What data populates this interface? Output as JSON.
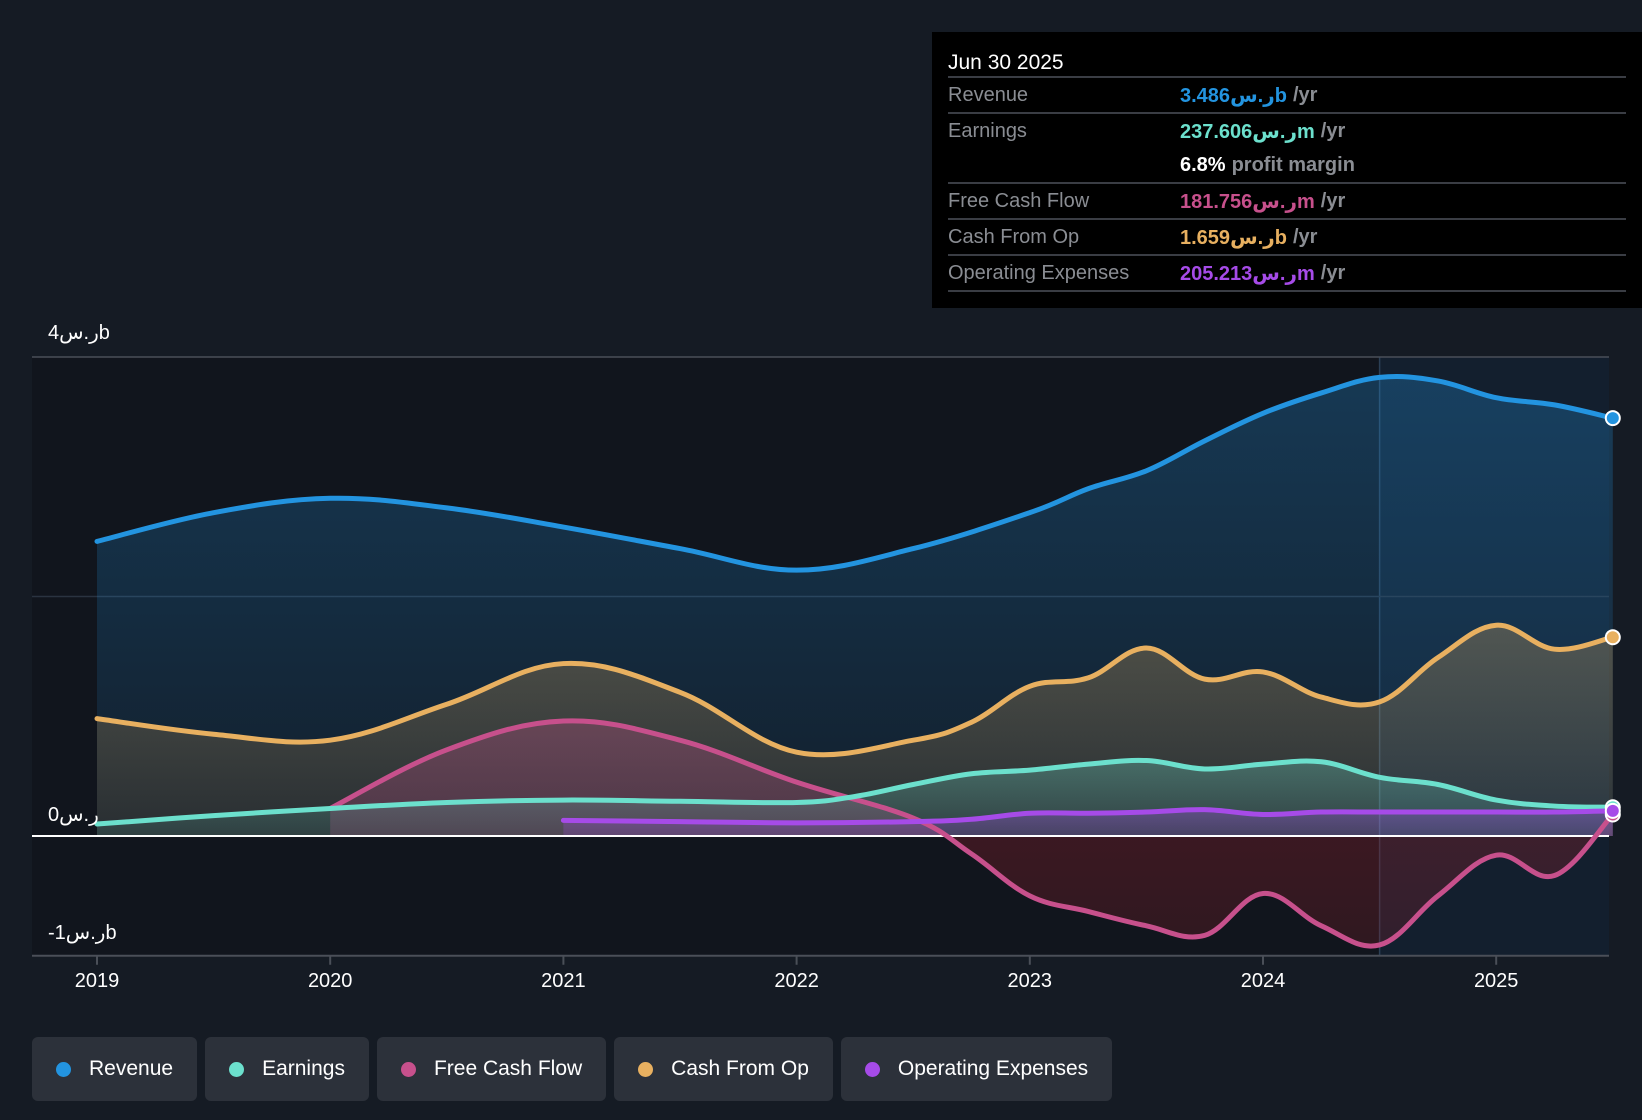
{
  "tooltip": {
    "date": "Jun 30 2025",
    "rows": [
      {
        "label": "Revenue",
        "value": "3.486ر.سb",
        "unit": "/yr",
        "color": "#2394e0"
      },
      {
        "label": "Earnings",
        "value": "237.606ر.سm",
        "unit": "/yr",
        "color": "#6ce0cd"
      },
      {
        "label": "",
        "margin_value": "6.8%",
        "margin_text": "profit margin"
      },
      {
        "label": "Free Cash Flow",
        "value": "181.756ر.سm",
        "unit": "/yr",
        "color": "#c7508c"
      },
      {
        "label": "Cash From Op",
        "value": "1.659ر.سb",
        "unit": "/yr",
        "color": "#e8b060"
      },
      {
        "label": "Operating Expenses",
        "value": "205.213ر.سm",
        "unit": "/yr",
        "color": "#a64be8"
      }
    ]
  },
  "legend": [
    {
      "label": "Revenue",
      "color": "#2394e0"
    },
    {
      "label": "Earnings",
      "color": "#6ce0cd"
    },
    {
      "label": "Free Cash Flow",
      "color": "#c7508c"
    },
    {
      "label": "Cash From Op",
      "color": "#e8b060"
    },
    {
      "label": "Operating Expenses",
      "color": "#a64be8"
    }
  ],
  "chart_data": {
    "type": "area",
    "title": "",
    "xlabel": "",
    "ylabel": "",
    "x_ticks": [
      "2019",
      "2020",
      "2021",
      "2022",
      "2023",
      "2024",
      "2025"
    ],
    "y_ticks": [
      {
        "value": 4,
        "label": "4ر.سb"
      },
      {
        "value": 0,
        "label": "0ر.س"
      },
      {
        "value": -1,
        "label": "-1ر.سb"
      }
    ],
    "ylim": [
      -1,
      4
    ],
    "xlim": [
      2019,
      2025.5
    ],
    "grid": true,
    "highlight_from": 2024.5,
    "series": [
      {
        "name": "Revenue",
        "color": "#2394e0",
        "x": [
          2019,
          2019.5,
          2020,
          2020.5,
          2021,
          2021.5,
          2022,
          2022.5,
          2023,
          2023.25,
          2023.5,
          2023.75,
          2024,
          2024.25,
          2024.5,
          2024.75,
          2025,
          2025.25,
          2025.5
        ],
        "values": [
          2.46,
          2.7,
          2.82,
          2.74,
          2.58,
          2.4,
          2.22,
          2.4,
          2.7,
          2.9,
          3.05,
          3.3,
          3.53,
          3.7,
          3.83,
          3.8,
          3.66,
          3.6,
          3.49
        ]
      },
      {
        "name": "Earnings",
        "color": "#6ce0cd",
        "x": [
          2019,
          2019.5,
          2020,
          2020.5,
          2021,
          2021.5,
          2022,
          2022.25,
          2022.5,
          2022.75,
          2023,
          2023.25,
          2023.5,
          2023.75,
          2024,
          2024.25,
          2024.5,
          2024.75,
          2025,
          2025.25,
          2025.5
        ],
        "values": [
          0.1,
          0.17,
          0.23,
          0.28,
          0.3,
          0.29,
          0.28,
          0.33,
          0.43,
          0.52,
          0.55,
          0.6,
          0.63,
          0.56,
          0.6,
          0.62,
          0.49,
          0.43,
          0.3,
          0.25,
          0.24
        ]
      },
      {
        "name": "Free Cash Flow",
        "color": "#c7508c",
        "x": [
          2020,
          2020.5,
          2021,
          2021.5,
          2022,
          2022.5,
          2022.75,
          2023,
          2023.25,
          2023.5,
          2023.75,
          2024,
          2024.25,
          2024.5,
          2024.75,
          2025,
          2025.25,
          2025.5
        ],
        "values": [
          0.23,
          0.72,
          0.96,
          0.8,
          0.45,
          0.15,
          -0.15,
          -0.5,
          -0.63,
          -0.75,
          -0.83,
          -0.48,
          -0.75,
          -0.91,
          -0.5,
          -0.16,
          -0.33,
          0.18
        ]
      },
      {
        "name": "Cash From Op",
        "color": "#e8b060",
        "x": [
          2019,
          2019.5,
          2020,
          2020.5,
          2021,
          2021.5,
          2022,
          2022.5,
          2022.75,
          2023,
          2023.25,
          2023.5,
          2023.75,
          2024,
          2024.25,
          2024.5,
          2024.75,
          2025,
          2025.25,
          2025.5
        ],
        "values": [
          0.98,
          0.85,
          0.8,
          1.1,
          1.44,
          1.2,
          0.7,
          0.8,
          0.95,
          1.25,
          1.32,
          1.57,
          1.31,
          1.37,
          1.16,
          1.12,
          1.49,
          1.76,
          1.56,
          1.66
        ]
      },
      {
        "name": "Operating Expenses",
        "color": "#a64be8",
        "x": [
          2021,
          2021.5,
          2022,
          2022.5,
          2022.75,
          2023,
          2023.25,
          2023.5,
          2023.75,
          2024,
          2024.25,
          2024.5,
          2024.75,
          2025,
          2025.25,
          2025.5
        ],
        "values": [
          0.13,
          0.12,
          0.11,
          0.12,
          0.14,
          0.19,
          0.19,
          0.2,
          0.22,
          0.18,
          0.2,
          0.2,
          0.2,
          0.2,
          0.2,
          0.21
        ]
      }
    ]
  }
}
